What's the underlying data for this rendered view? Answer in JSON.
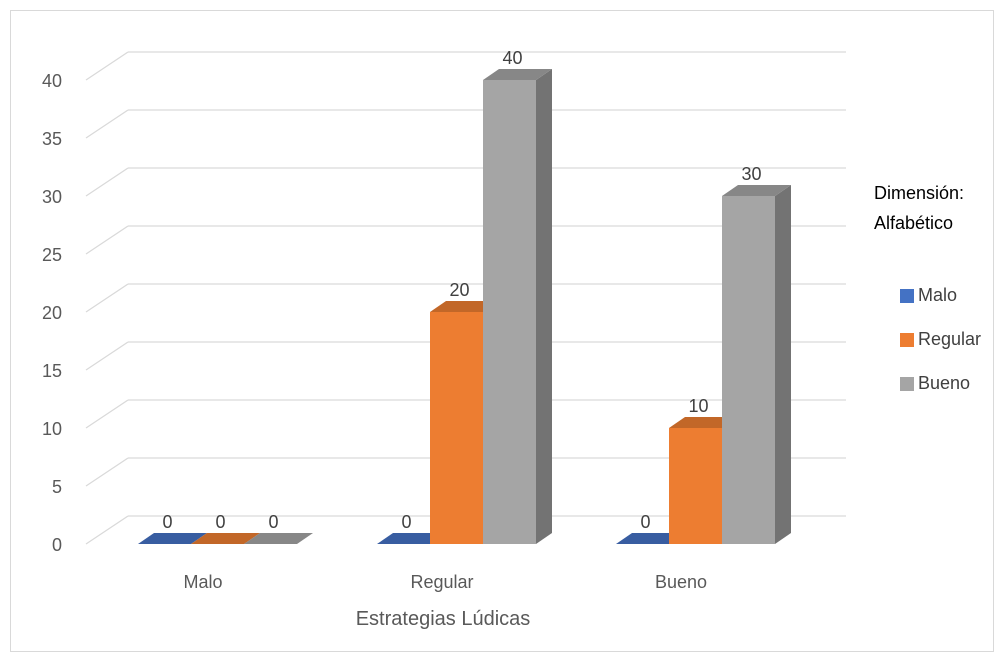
{
  "chart_data": {
    "type": "bar",
    "title": "",
    "xlabel": "Estrategias Lúdicas",
    "ylabel": "",
    "ylim": [
      0,
      40
    ],
    "yticks": [
      "0",
      "5",
      "10",
      "15",
      "20",
      "25",
      "30",
      "35",
      "40"
    ],
    "categories": [
      "Malo",
      "Regular",
      "Bueno"
    ],
    "legend_title": "Dimensión: Alfabético",
    "legend_position": "right",
    "grid": true,
    "series": [
      {
        "name": "Malo",
        "values": [
          0,
          0,
          0
        ],
        "color": "#4472c4"
      },
      {
        "name": "Regular",
        "values": [
          0,
          20,
          10
        ],
        "color": "#ed7d31"
      },
      {
        "name": "Bueno",
        "values": [
          0,
          40,
          30
        ],
        "color": "#a5a5a5"
      }
    ]
  }
}
